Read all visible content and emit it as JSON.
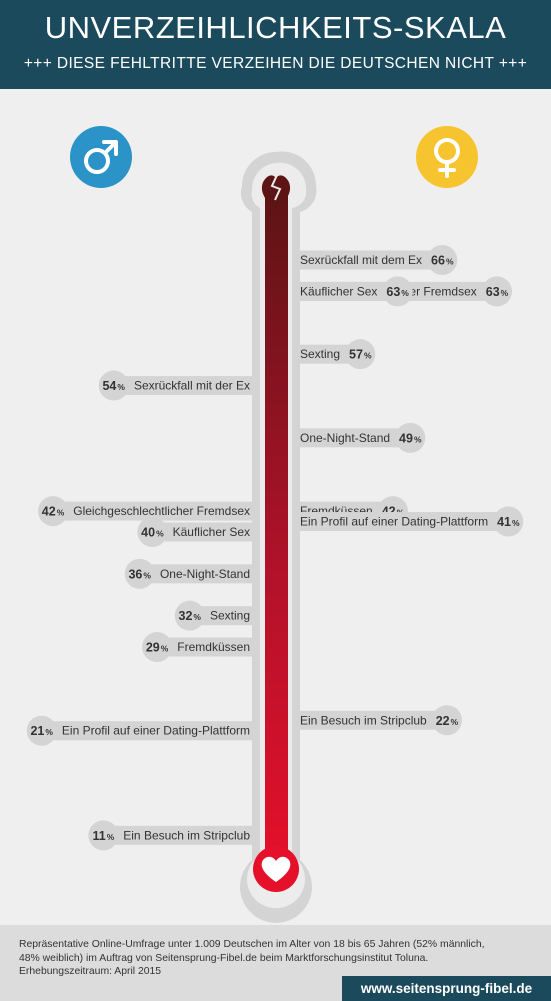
{
  "header": {
    "title": "UNVERZEIHLICHKEITS-SKALA",
    "subtitle": "+++ DIESE FEHLTRITTE VERZEIHEN DIE DEUTSCHEN NICHT +++"
  },
  "icons": {
    "male": "male-symbol-icon",
    "female": "female-symbol-icon",
    "thermometer_top": "broken-heart-icon",
    "thermometer_bulb": "heart-icon"
  },
  "colors": {
    "header_bg": "#1b4a5c",
    "male": "#2b93c8",
    "female": "#f6c42e",
    "thermo_top": "#5c1414",
    "thermo_bottom": "#e5102a",
    "bubble": "#d4d4d4"
  },
  "chart_data": {
    "type": "bar",
    "unit": "%",
    "series": [
      {
        "name": "",
        "side": "left",
        "items": [
          {
            "label": "Sexrückfall mit der Ex",
            "value": 54
          },
          {
            "label": "Gleichgeschlechtlicher Fremdsex",
            "value": 42
          },
          {
            "label": "Käuflicher Sex",
            "value": 40
          },
          {
            "label": "One-Night-Stand",
            "value": 36
          },
          {
            "label": "Sexting",
            "value": 32
          },
          {
            "label": "Fremdküssen",
            "value": 29
          },
          {
            "label": "Ein Profil auf einer Dating-Plattform",
            "value": 21
          },
          {
            "label": "Ein Besuch im Stripclub",
            "value": 11
          }
        ]
      },
      {
        "name": "",
        "side": "right",
        "items": [
          {
            "label": "Sexrückfall mit dem Ex",
            "value": 66
          },
          {
            "label": "Gleichgeschlechtlicher Fremdsex",
            "value": 63
          },
          {
            "label": "Käuflicher Sex",
            "value": 63
          },
          {
            "label": "Sexting",
            "value": 57
          },
          {
            "label": "One-Night-Stand",
            "value": 49
          },
          {
            "label": "Fremdküssen",
            "value": 42
          },
          {
            "label": "Ein Profil auf einer Dating-Plattform",
            "value": 41
          },
          {
            "label": "Ein Besuch im Stripclub",
            "value": 22
          }
        ]
      }
    ]
  },
  "footer": {
    "note": "Repräsentative Online-Umfrage unter 1.009 Deutschen im Alter von 18 bis 65 Jahren (52% männlich, 48% weiblich) im Auftrag von Seitensprung-Fibel.de beim Marktforschungsinstitut Toluna. Erhebungszeitraum: April 2015",
    "url": "www.seitensprung-fibel.de"
  }
}
